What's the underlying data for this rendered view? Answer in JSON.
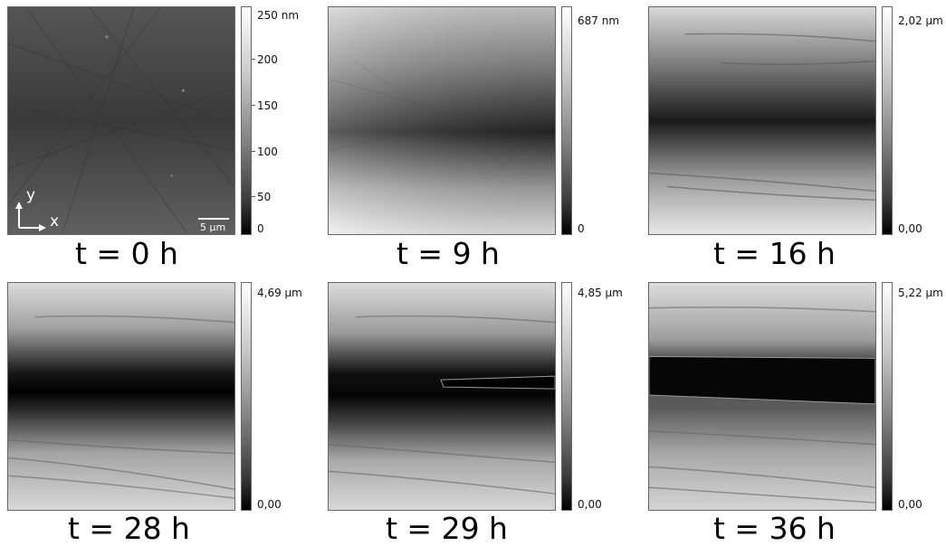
{
  "panels": [
    {
      "caption": "t = 0 h",
      "top_label": "250 nm",
      "ticks": [
        "200",
        "150",
        "100",
        "50"
      ],
      "bottom_label": "0"
    },
    {
      "caption": "t = 9 h",
      "top_label": "687 nm",
      "ticks": [],
      "bottom_label": "0"
    },
    {
      "caption": "t = 16 h",
      "top_label": "2,02 µm",
      "ticks": [],
      "bottom_label": "0,00"
    },
    {
      "caption": "t = 28 h",
      "top_label": "4,69 µm",
      "ticks": [],
      "bottom_label": "0,00"
    },
    {
      "caption": "t = 29 h",
      "top_label": "4,85 µm",
      "ticks": [],
      "bottom_label": "0,00"
    },
    {
      "caption": "t = 36 h",
      "top_label": "5,22 µm",
      "ticks": [],
      "bottom_label": "0,00"
    }
  ],
  "scale_bar": "5 µm",
  "axes": {
    "y": "y",
    "x": "x"
  },
  "colorbar_colors": [
    "#ffffff",
    "#000000"
  ]
}
